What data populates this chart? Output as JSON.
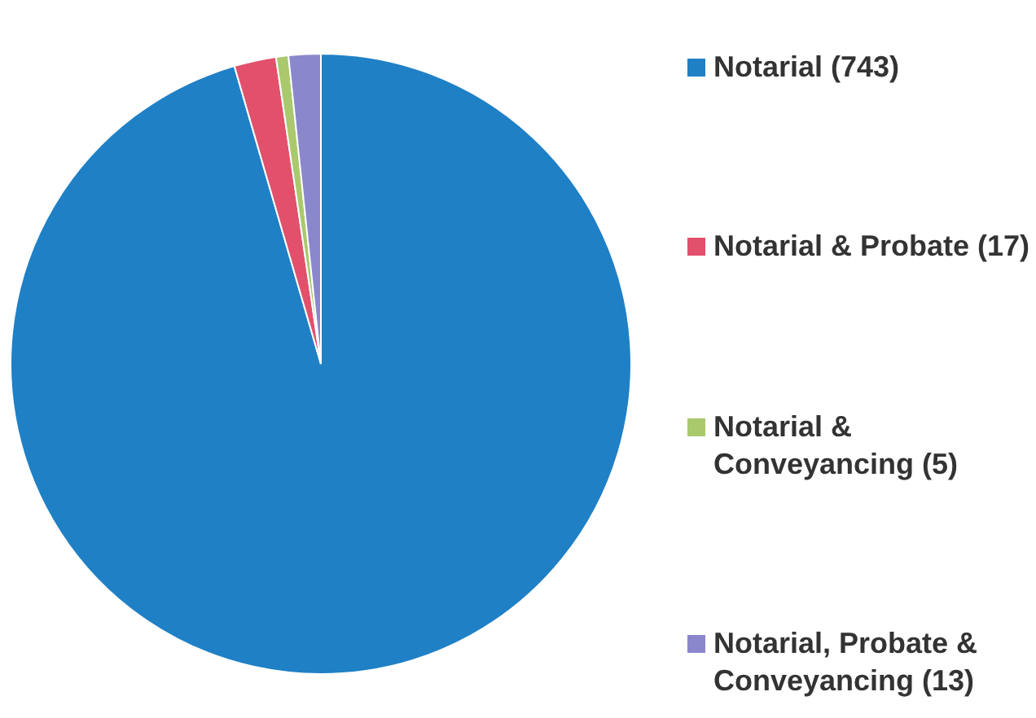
{
  "chart_data": {
    "type": "pie",
    "categories": [
      "Notarial (743)",
      "Notarial & Probate (17)",
      "Notarial & Conveyancing (5)",
      "Notarial, Probate & Conveyancing (13)"
    ],
    "values": [
      743,
      17,
      5,
      13
    ],
    "colors": [
      "#1f80c6",
      "#e2506c",
      "#a9c96c",
      "#8a87cc"
    ],
    "legend": "right"
  }
}
